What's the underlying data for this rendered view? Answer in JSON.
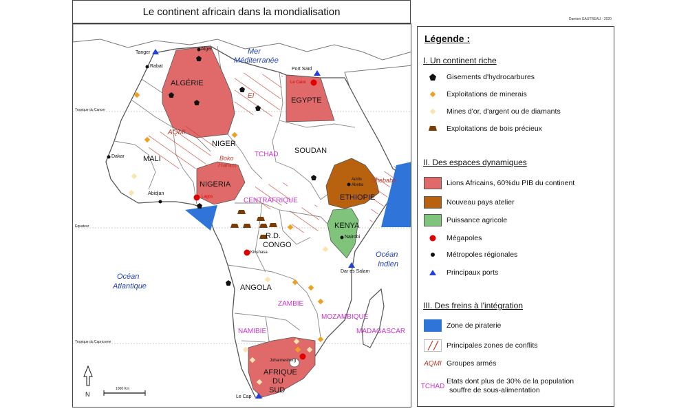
{
  "title": "Le continent africain dans la mondialisation",
  "credit": "Damien GAUTREAU - 2020",
  "colors": {
    "lions": "#e06a6a",
    "atelier": "#b8620f",
    "agricole": "#7fc47a",
    "piracy": "#2f74d9",
    "conflict": "#c0392b",
    "undernourished": "#cc33cc",
    "armed_group": "#c0392b",
    "ocean_label": "#1f3fbf",
    "land": "#ffffff",
    "sea": "#ffffff"
  },
  "map": {
    "tropic_cancer": "Tropique du Cancer",
    "equator": "Equateur",
    "tropic_capricorn": "Tropique du Capricorne",
    "scale": "1000 Km",
    "north": "N",
    "seas": {
      "mediterranean_1": "Mer",
      "mediterranean_2": "Méditerranée",
      "atlantic_1": "Océan",
      "atlantic_2": "Atlantique",
      "indian_1": "Océan",
      "indian_2": "Indien"
    },
    "countries": {
      "algeria": "ALGÉRIE",
      "egypt": "EGYPTE",
      "niger": "NIGER",
      "mali": "MALI",
      "nigeria": "NIGERIA",
      "chad": "TCHAD",
      "sudan": "SOUDAN",
      "ethiopia": "ETHIOPIE",
      "car": "CENTRAFRIQUE",
      "kenya": "KENYA",
      "rdc_1": "R.D.",
      "rdc_2": "CONGO",
      "angola": "ANGOLA",
      "zambia": "ZAMBIE",
      "mozambique": "MOZAMBIQUE",
      "namibia": "NAMIBIE",
      "madagascar": "MADAGASCAR",
      "south_africa_1": "AFRIQUE",
      "south_africa_2": "DU",
      "south_africa_3": "SUD"
    },
    "groups": {
      "aqmi": "AQMI",
      "boko_1": "Boko",
      "boko_2": "Haram",
      "shebabs": "Shebabs",
      "ei": "EI"
    },
    "cities": {
      "tanger": "Tanger",
      "alger": "Alger",
      "rabat": "Rabat",
      "port_said": "Port Saïd",
      "le_caire": "Le Caire",
      "dakar": "Dakar",
      "abidjan": "Abidjan",
      "lagos": "Lagos",
      "addis_1": "Addis",
      "addis_2": "Abeba",
      "nairobi": "Nairobi",
      "kinshasa": "Kinshasa",
      "dar_es_salam": "Dar es Salam",
      "johannesburg": "Johannesburg",
      "le_cap": "Le Cap"
    }
  },
  "legend": {
    "title": "Légende :",
    "section1": "I. Un continent riche",
    "hydrocarbons": "Gisements d'hydrocarbures",
    "minerals": "Exploitations de minerais",
    "gold": "Mines d'or, d'argent ou de diamants",
    "wood": "Exploitations de bois précieux",
    "section2": "II. Des espaces dynamiques",
    "lions": "Lions Africains, 60%du PIB du continent",
    "atelier": "Nouveau pays atelier",
    "agricole": "Puissance agricole",
    "megacities": "Mégapoles",
    "metropoles": "Métropoles régionales",
    "ports": "Principaux ports",
    "section3": "III. Des freins à l'intégration",
    "piracy": "Zone de piraterie",
    "conflicts": "Principales zones de conflits",
    "armed_sample": "AQMI",
    "armed": "Groupes armés",
    "hunger_sample": "TCHAD",
    "hunger_1": "Etats dont plus de 30% de la population",
    "hunger_2": "souffre de sous-alimentation"
  }
}
